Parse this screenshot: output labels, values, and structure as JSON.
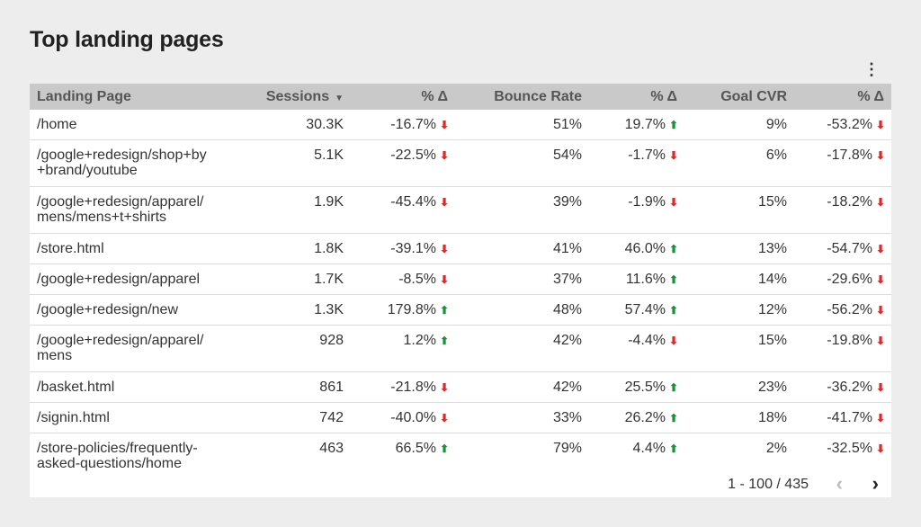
{
  "title": "Top landing pages",
  "icons": {
    "menu": "more-vert-icon",
    "sort": "sort-down-icon",
    "prev": "chevron-left-icon",
    "next": "chevron-right-icon"
  },
  "colors": {
    "down": "#d92b2b",
    "up": "#1e8e3e",
    "header_bg": "#c9c9c9"
  },
  "table": {
    "headers": [
      "Landing Page",
      "Sessions",
      "% Δ",
      "Bounce Rate",
      "% Δ",
      "Goal CVR",
      "% Δ"
    ],
    "rows": [
      {
        "page": "/home",
        "sessions": "30.3K",
        "sessions_delta": "-16.7%",
        "sessions_dir": "down",
        "bounce": "51%",
        "bounce_delta": "19.7%",
        "bounce_dir": "up",
        "cvr": "9%",
        "cvr_delta": "-53.2%",
        "cvr_dir": "down"
      },
      {
        "page": "/google+redesign/shop+by\n+brand/youtube",
        "sessions": "5.1K",
        "sessions_delta": "-22.5%",
        "sessions_dir": "down",
        "bounce": "54%",
        "bounce_delta": "-1.7%",
        "bounce_dir": "down",
        "cvr": "6%",
        "cvr_delta": "-17.8%",
        "cvr_dir": "down"
      },
      {
        "page": "/google+redesign/apparel/\nmens/mens+t+shirts",
        "sessions": "1.9K",
        "sessions_delta": "-45.4%",
        "sessions_dir": "down",
        "bounce": "39%",
        "bounce_delta": "-1.9%",
        "bounce_dir": "down",
        "cvr": "15%",
        "cvr_delta": "-18.2%",
        "cvr_dir": "down"
      },
      {
        "page": "/store.html",
        "sessions": "1.8K",
        "sessions_delta": "-39.1%",
        "sessions_dir": "down",
        "bounce": "41%",
        "bounce_delta": "46.0%",
        "bounce_dir": "up",
        "cvr": "13%",
        "cvr_delta": "-54.7%",
        "cvr_dir": "down"
      },
      {
        "page": "/google+redesign/apparel",
        "sessions": "1.7K",
        "sessions_delta": "-8.5%",
        "sessions_dir": "down",
        "bounce": "37%",
        "bounce_delta": "11.6%",
        "bounce_dir": "up",
        "cvr": "14%",
        "cvr_delta": "-29.6%",
        "cvr_dir": "down"
      },
      {
        "page": "/google+redesign/new",
        "sessions": "1.3K",
        "sessions_delta": "179.8%",
        "sessions_dir": "up",
        "bounce": "48%",
        "bounce_delta": "57.4%",
        "bounce_dir": "up",
        "cvr": "12%",
        "cvr_delta": "-56.2%",
        "cvr_dir": "down"
      },
      {
        "page": "/google+redesign/apparel/\nmens",
        "sessions": "928",
        "sessions_delta": "1.2%",
        "sessions_dir": "up",
        "bounce": "42%",
        "bounce_delta": "-4.4%",
        "bounce_dir": "down",
        "cvr": "15%",
        "cvr_delta": "-19.8%",
        "cvr_dir": "down"
      },
      {
        "page": "/basket.html",
        "sessions": "861",
        "sessions_delta": "-21.8%",
        "sessions_dir": "down",
        "bounce": "42%",
        "bounce_delta": "25.5%",
        "bounce_dir": "up",
        "cvr": "23%",
        "cvr_delta": "-36.2%",
        "cvr_dir": "down"
      },
      {
        "page": "/signin.html",
        "sessions": "742",
        "sessions_delta": "-40.0%",
        "sessions_dir": "down",
        "bounce": "33%",
        "bounce_delta": "26.2%",
        "bounce_dir": "up",
        "cvr": "18%",
        "cvr_delta": "-41.7%",
        "cvr_dir": "down"
      },
      {
        "page": "/store-policies/frequently-\nasked-questions/home",
        "sessions": "463",
        "sessions_delta": "66.5%",
        "sessions_dir": "up",
        "bounce": "79%",
        "bounce_delta": "4.4%",
        "bounce_dir": "up",
        "cvr": "2%",
        "cvr_delta": "-32.5%",
        "cvr_dir": "down"
      }
    ]
  },
  "pagination": {
    "text": "1 - 100 / 435"
  }
}
